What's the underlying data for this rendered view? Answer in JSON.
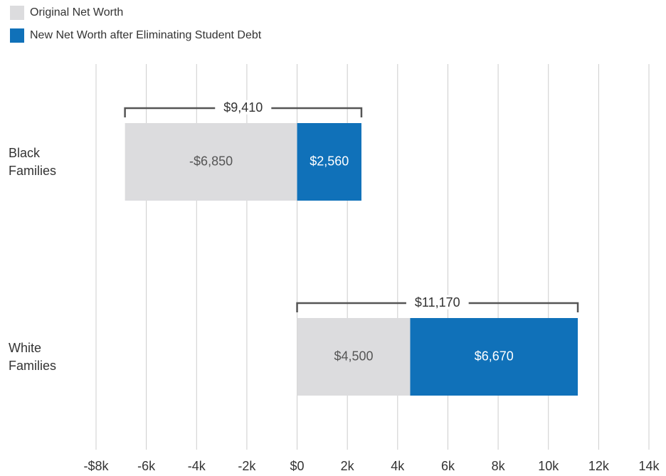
{
  "chart_data": {
    "type": "bar",
    "orientation": "horizontal",
    "stacked": true,
    "categories": [
      "Black Families",
      "White Families"
    ],
    "series": [
      {
        "name": "Original Net Worth",
        "color": "#dcdcde",
        "values": [
          -6850,
          4500
        ],
        "value_labels": [
          "-$6,850",
          "$4,500"
        ]
      },
      {
        "name": "New Net Worth after Eliminating Student Debt",
        "color": "#1071b9",
        "values": [
          2560,
          6670
        ],
        "value_labels": [
          "$2,560",
          "$6,670"
        ]
      }
    ],
    "brackets": [
      {
        "value": 9410,
        "label": "$9,410"
      },
      {
        "value": 11170,
        "label": "$11,170"
      }
    ],
    "xlim": [
      -8000,
      14000
    ],
    "xticks": [
      {
        "value": -8000,
        "label": "-$8k"
      },
      {
        "value": -6000,
        "label": "-6k"
      },
      {
        "value": -4000,
        "label": "-4k"
      },
      {
        "value": -2000,
        "label": "-2k"
      },
      {
        "value": 0,
        "label": "$0"
      },
      {
        "value": 2000,
        "label": "2k"
      },
      {
        "value": 4000,
        "label": "4k"
      },
      {
        "value": 6000,
        "label": "6k"
      },
      {
        "value": 8000,
        "label": "8k"
      },
      {
        "value": 10000,
        "label": "10k"
      },
      {
        "value": 12000,
        "label": "12k"
      },
      {
        "value": 14000,
        "label": "14k"
      }
    ],
    "grid": true,
    "legend": "top-left"
  }
}
